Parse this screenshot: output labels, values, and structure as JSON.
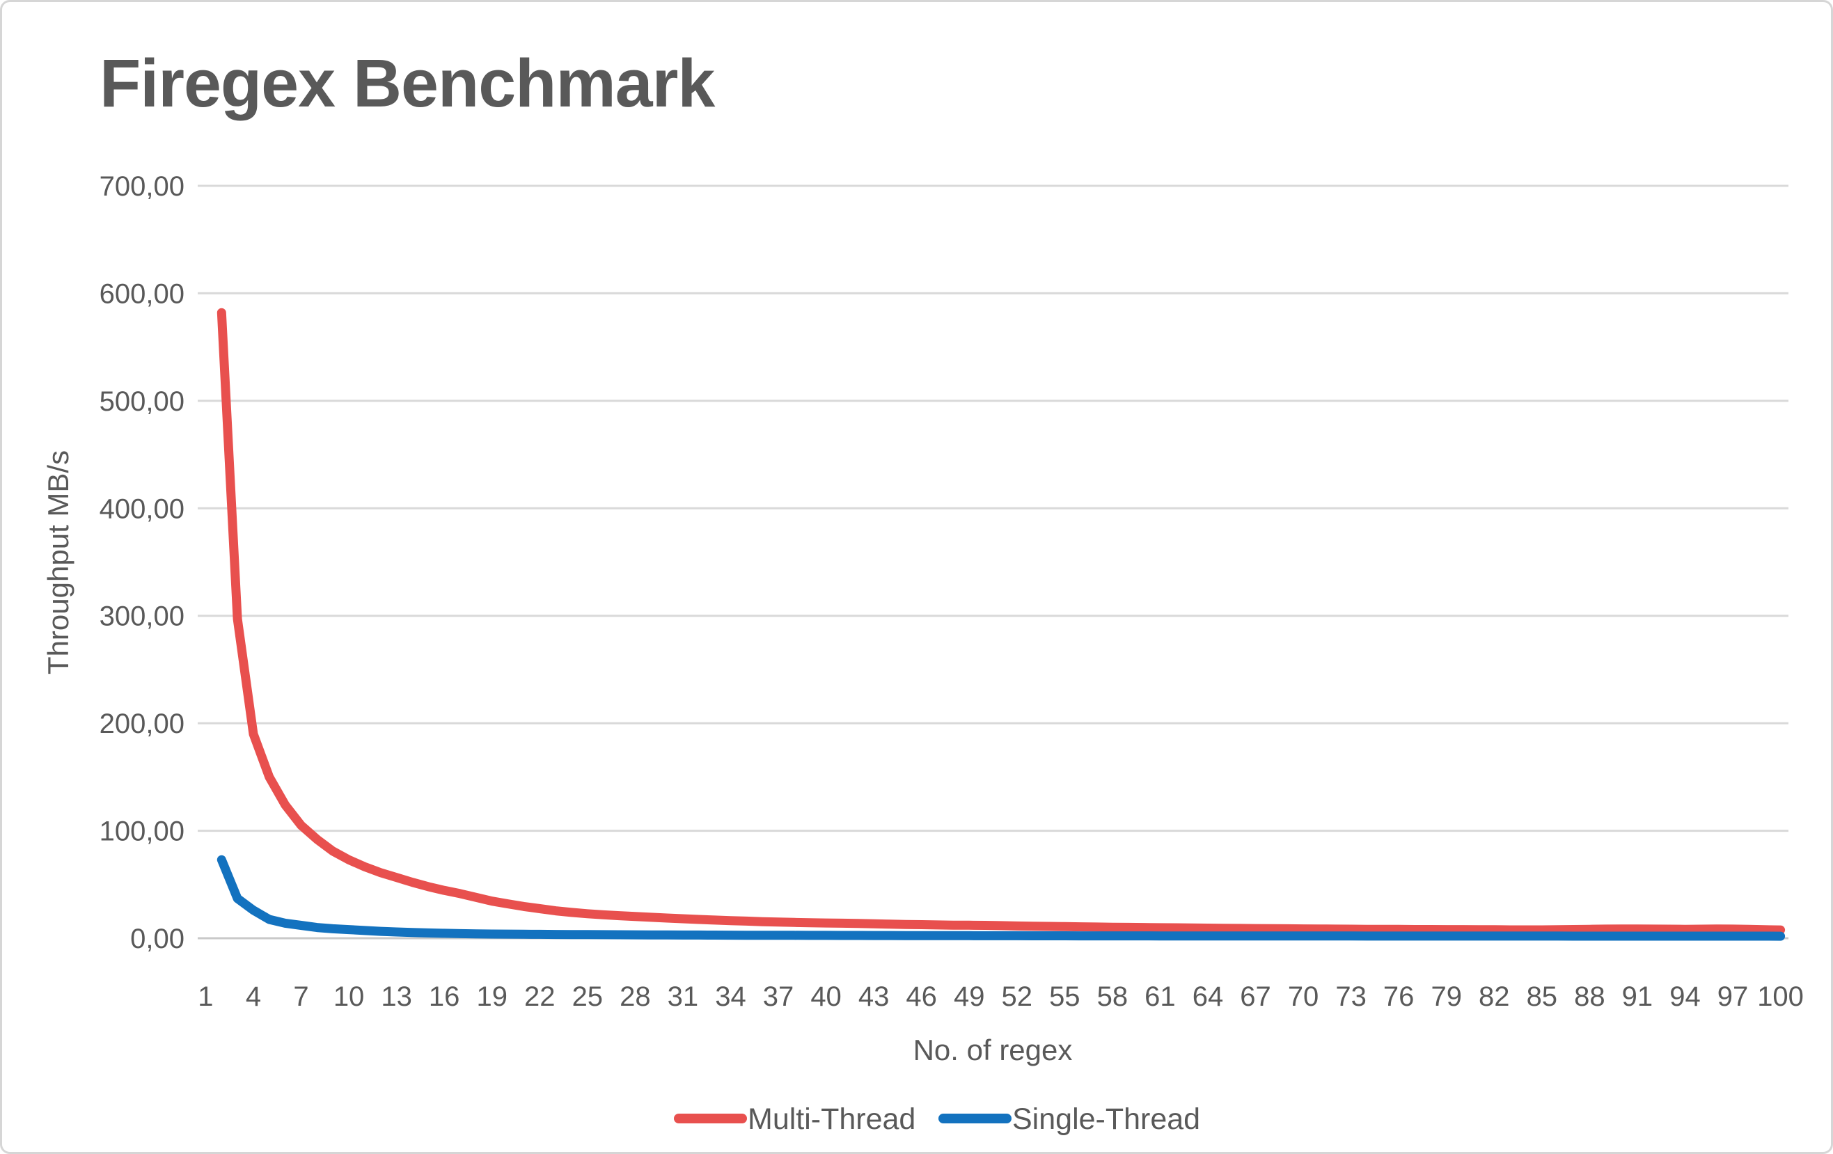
{
  "title": "Firegex Benchmark",
  "colors": {
    "multi_thread": "#e8504e",
    "single_thread": "#1372bf",
    "grid": "#d9d9d9",
    "axis_line": "#c9c9c9",
    "text": "#595959"
  },
  "y_axis": {
    "title": "Throughput MB/s",
    "tick_labels": [
      "0,00",
      "100,00",
      "200,00",
      "300,00",
      "400,00",
      "500,00",
      "600,00",
      "700,00"
    ],
    "min": 0,
    "max": 700,
    "step": 100
  },
  "x_axis": {
    "title": "No. of regex",
    "tick_labels": [
      1,
      4,
      7,
      10,
      13,
      16,
      19,
      22,
      25,
      28,
      31,
      34,
      37,
      40,
      43,
      46,
      49,
      52,
      55,
      58,
      61,
      64,
      67,
      70,
      73,
      76,
      79,
      82,
      85,
      88,
      91,
      94,
      97,
      100
    ]
  },
  "legend": {
    "items": [
      {
        "label": "Multi-Thread",
        "series": "multi_thread"
      },
      {
        "label": "Single-Thread",
        "series": "single_thread"
      }
    ],
    "position": "bottom"
  },
  "chart_data": {
    "type": "line",
    "title": "Firegex Benchmark",
    "xlabel": "No. of regex",
    "ylabel": "Throughput MB/s",
    "ylim": [
      0,
      700
    ],
    "x_categories_range": [
      1,
      100
    ],
    "grid": true,
    "legend_position": "bottom",
    "x": [
      2,
      3,
      4,
      5,
      6,
      7,
      8,
      9,
      10,
      11,
      12,
      13,
      14,
      15,
      16,
      17,
      18,
      19,
      20,
      21,
      22,
      23,
      24,
      25,
      26,
      27,
      28,
      29,
      30,
      31,
      32,
      33,
      34,
      35,
      36,
      37,
      38,
      39,
      40,
      41,
      42,
      43,
      44,
      45,
      46,
      47,
      48,
      49,
      50,
      51,
      52,
      53,
      54,
      55,
      56,
      57,
      58,
      59,
      60,
      61,
      62,
      63,
      64,
      65,
      66,
      67,
      68,
      69,
      70,
      71,
      72,
      73,
      74,
      75,
      76,
      77,
      78,
      79,
      80,
      81,
      82,
      83,
      84,
      85,
      86,
      87,
      88,
      89,
      90,
      91,
      92,
      93,
      94,
      95,
      96,
      97,
      98,
      99,
      100
    ],
    "series": [
      {
        "name": "Multi-Thread",
        "color": "#e8504e",
        "values": [
          582,
          297,
          190,
          150,
          124,
          105,
          92,
          81,
          73,
          66.5,
          61,
          56.5,
          52,
          48,
          44.5,
          41.5,
          38,
          34.5,
          32,
          29.5,
          27.5,
          25.5,
          24,
          22.8,
          21.8,
          21,
          20.3,
          19.5,
          18.8,
          18.1,
          17.5,
          16.9,
          16.4,
          15.9,
          15.4,
          15,
          14.7,
          14.4,
          14.2,
          14,
          13.7,
          13.4,
          13.1,
          12.8,
          12.6,
          12.4,
          12.2,
          12.1,
          12,
          11.7,
          11.4,
          11.2,
          11,
          10.8,
          10.6,
          10.4,
          10.2,
          10.1,
          10,
          9.8,
          9.7,
          9.5,
          9.4,
          9.2,
          9.1,
          9,
          8.9,
          8.8,
          8.7,
          8.6,
          8.5,
          8.4,
          8.3,
          8.2,
          8.2,
          8.1,
          8.1,
          8,
          8,
          7.9,
          7.9,
          7.8,
          7.8,
          7.8,
          7.9,
          8.1,
          8.3,
          8.5,
          8.6,
          8.6,
          8.5,
          8.4,
          8.3,
          8.4,
          8.6,
          8.5,
          8.2,
          7.9,
          7.7
        ]
      },
      {
        "name": "Single-Thread",
        "color": "#1372bf",
        "values": [
          73,
          37,
          26,
          17.5,
          14,
          12,
          10,
          8.8,
          8,
          7.2,
          6.4,
          5.8,
          5.3,
          4.9,
          4.6,
          4.3,
          4.1,
          3.9,
          3.8,
          3.7,
          3.6,
          3.5,
          3.45,
          3.4,
          3.3,
          3.25,
          3.2,
          3.1,
          3.05,
          3,
          2.95,
          2.9,
          2.85,
          2.8,
          2.77,
          2.74,
          2.7,
          2.67,
          2.64,
          2.6,
          2.57,
          2.54,
          2.5,
          2.48,
          2.45,
          2.42,
          2.4,
          2.37,
          2.35,
          2.33,
          2.3,
          2.28,
          2.26,
          2.25,
          2.23,
          2.22,
          2.2,
          2.19,
          2.18,
          2.16,
          2.15,
          2.14,
          2.13,
          2.12,
          2.1,
          2.09,
          2.08,
          2.07,
          2.06,
          2.05,
          2.05,
          2.04,
          2.03,
          2.03,
          2.02,
          2.02,
          2.01,
          2.01,
          2,
          2,
          2,
          1.99,
          1.99,
          1.98,
          1.98,
          1.97,
          1.97,
          1.96,
          1.96,
          1.95,
          1.95,
          1.95,
          1.94,
          1.94,
          1.93,
          1.93,
          1.92,
          1.92,
          1.9
        ]
      }
    ]
  }
}
